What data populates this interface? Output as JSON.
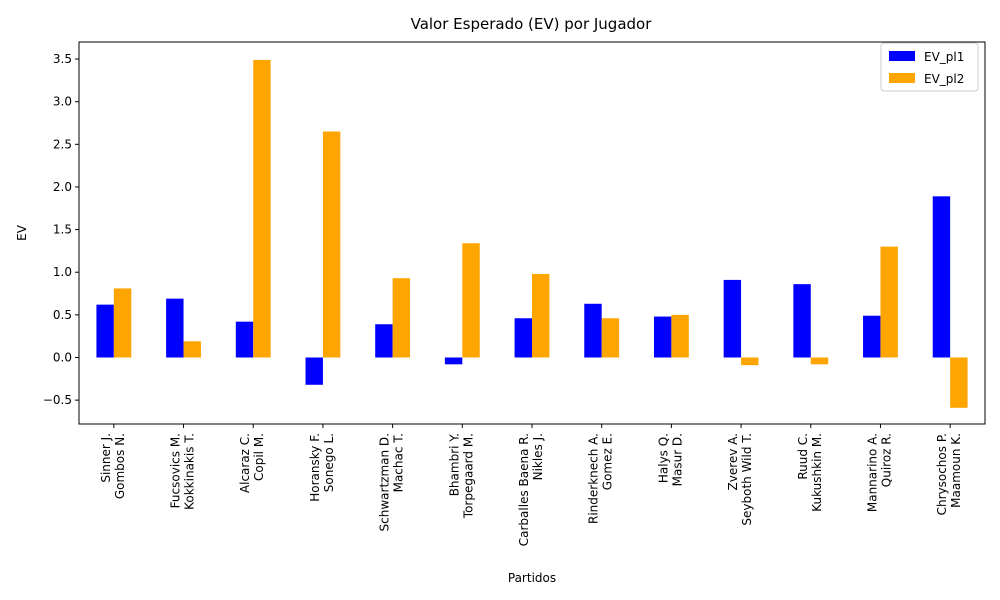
{
  "chart_data": {
    "type": "bar",
    "title": "Valor Esperado (EV) por Jugador",
    "xlabel": "Partidos",
    "ylabel": "EV",
    "ylim": [
      -0.78,
      3.7
    ],
    "yticks": [
      -0.5,
      0.0,
      0.5,
      1.0,
      1.5,
      2.0,
      2.5,
      3.0,
      3.5
    ],
    "ytick_labels": [
      "−0.5",
      "0.0",
      "0.5",
      "1.0",
      "1.5",
      "2.0",
      "2.5",
      "3.0",
      "3.5"
    ],
    "grid": false,
    "legend_position": "top-right",
    "categories": [
      [
        "Sinner J.",
        "Gombos N."
      ],
      [
        "Fucsovics M.",
        "Kokkinakis T."
      ],
      [
        "Alcaraz C.",
        "Copil M."
      ],
      [
        "Horansky F.",
        "Sonego L."
      ],
      [
        "Schwartzman D.",
        "Machac T."
      ],
      [
        "Bhambri Y.",
        "Torpegaard M."
      ],
      [
        "Carballes Baena R.",
        "Nikles J."
      ],
      [
        "Rinderknech A.",
        "Gomez E."
      ],
      [
        "Halys Q.",
        "Masur D."
      ],
      [
        "Zverev A.",
        "Seyboth Wild T."
      ],
      [
        "Ruud C.",
        "Kukushkin M."
      ],
      [
        "Mannarino A.",
        "Quiroz R."
      ],
      [
        "Chrysochos P.",
        "Maamoun K."
      ]
    ],
    "series": [
      {
        "name": "EV_pl1",
        "color": "#0000ff",
        "values": [
          0.62,
          0.69,
          0.42,
          -0.32,
          0.39,
          -0.08,
          0.46,
          0.63,
          0.48,
          0.91,
          0.86,
          0.49,
          1.89
        ]
      },
      {
        "name": "EV_pl2",
        "color": "#ffa500",
        "values": [
          0.81,
          0.19,
          3.49,
          2.65,
          0.93,
          1.34,
          0.98,
          0.46,
          0.5,
          -0.09,
          -0.08,
          1.3,
          -0.59
        ]
      }
    ]
  }
}
